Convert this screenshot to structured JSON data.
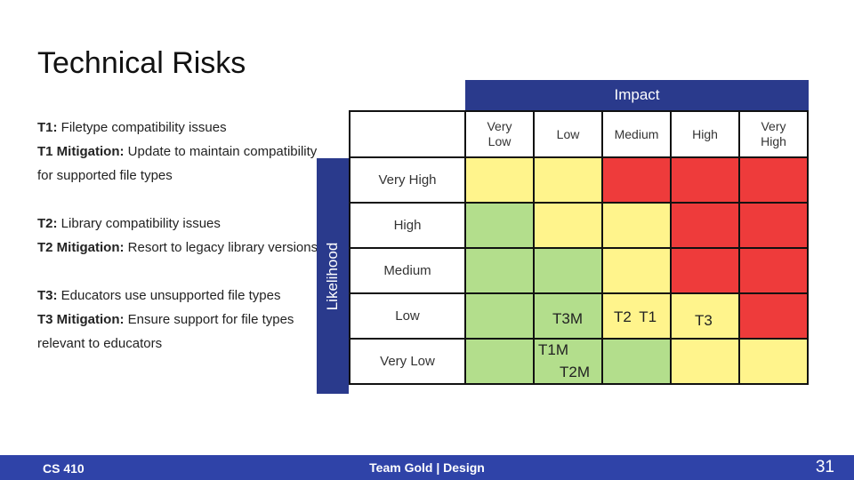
{
  "slide": {
    "title": "Technical Risks"
  },
  "risks": [
    {
      "risk_label": "T1:",
      "risk_text": "Filetype compatibility issues",
      "mitigation_label": "T1 Mitigation:",
      "mitigation_text": "Update to maintain compatibility for supported file types"
    },
    {
      "risk_label": "T2:",
      "risk_text": "Library compatibility issues",
      "mitigation_label": "T2 Mitigation:",
      "mitigation_text": "Resort to legacy library versions"
    },
    {
      "risk_label": "T3:",
      "risk_text": "Educators use unsupported file types",
      "mitigation_label": "T3 Mitigation:",
      "mitigation_text": "Ensure support for file types relevant to educators"
    }
  ],
  "matrix": {
    "impact_label": "Impact",
    "likelihood_label": "Likelihood",
    "impact_levels": [
      "Very Low",
      "Low",
      "Medium",
      "High",
      "Very High"
    ],
    "likelihood_levels": [
      "Very High",
      "High",
      "Medium",
      "Low",
      "Very Low"
    ],
    "colors": {
      "green": "#b3de8c",
      "yellow": "#fff48c",
      "red": "#ee3b3b",
      "header_blue": "#2a3a8c"
    },
    "markers": {
      "low_low": "T3M",
      "low_medium": "T2  T1",
      "low_high": "T3",
      "verylow_low_1": "T1M",
      "verylow_low_2": "T2M"
    }
  },
  "footer": {
    "course": "CS 410",
    "team": "Team Gold | Design",
    "page": "31",
    "color": "#2f43a8"
  }
}
